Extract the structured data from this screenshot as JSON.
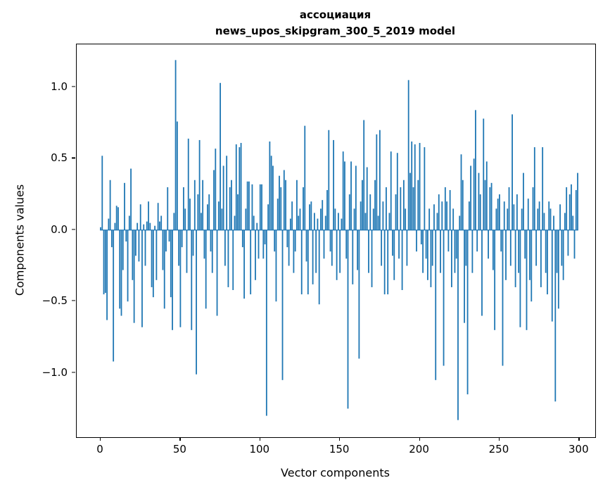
{
  "chart_data": {
    "type": "bar",
    "title": "ассоциация",
    "subtitle": "news_upos_skipgram_300_5_2019 model",
    "xlabel": "Vector components",
    "ylabel": "Components values",
    "bar_color": "#1f77b4",
    "xlim": [
      -15,
      310
    ],
    "ylim": [
      -1.45,
      1.3
    ],
    "xticks": [
      0,
      50,
      100,
      150,
      200,
      250,
      300
    ],
    "xtick_labels": [
      "0",
      "50",
      "100",
      "150",
      "200",
      "250",
      "300"
    ],
    "ytick_values": [
      1.0,
      0.5,
      0.0,
      -0.5,
      -1.0
    ],
    "ytick_labels": [
      "1.0",
      "0.5",
      "0.0",
      "−0.5",
      "−1.0"
    ],
    "x": {
      "start": 0,
      "step": 1,
      "count": 300
    },
    "values": [
      0.02,
      0.52,
      -0.45,
      -0.44,
      -0.63,
      0.08,
      0.35,
      -0.12,
      -0.92,
      0.05,
      0.17,
      0.16,
      -0.55,
      -0.6,
      -0.28,
      0.33,
      -0.08,
      -0.5,
      0.1,
      0.43,
      -0.35,
      -0.65,
      -0.18,
      0.05,
      -0.22,
      0.18,
      -0.68,
      0.04,
      -0.25,
      0.06,
      0.2,
      0.05,
      -0.4,
      -0.47,
      0.03,
      -0.35,
      0.19,
      0.06,
      0.1,
      -0.28,
      -0.55,
      -0.15,
      0.3,
      -0.08,
      -0.47,
      -0.7,
      0.12,
      1.19,
      0.76,
      -0.25,
      -0.68,
      -0.12,
      0.3,
      0.15,
      -0.3,
      0.64,
      0.22,
      -0.7,
      -0.18,
      0.35,
      -1.01,
      0.25,
      0.63,
      0.12,
      0.35,
      -0.2,
      -0.55,
      0.18,
      0.25,
      -0.15,
      -0.3,
      0.42,
      0.57,
      -0.6,
      0.2,
      1.03,
      0.15,
      0.45,
      -0.25,
      0.52,
      -0.4,
      0.3,
      0.35,
      -0.42,
      0.1,
      0.6,
      0.25,
      0.58,
      0.61,
      -0.12,
      -0.48,
      0.15,
      0.34,
      0.34,
      -0.45,
      0.32,
      0.1,
      -0.35,
      0.05,
      -0.2,
      0.32,
      0.32,
      -0.2,
      -0.1,
      -1.3,
      0.18,
      0.62,
      0.52,
      0.45,
      -0.15,
      -0.5,
      0.22,
      0.38,
      0.3,
      -1.05,
      0.42,
      0.35,
      -0.12,
      -0.25,
      0.08,
      0.2,
      -0.3,
      -0.15,
      0.35,
      0.1,
      0.15,
      -0.45,
      0.3,
      0.73,
      -0.22,
      -0.45,
      0.18,
      0.2,
      -0.38,
      0.12,
      -0.3,
      0.08,
      -0.52,
      0.15,
      0.21,
      -0.2,
      0.1,
      0.28,
      0.7,
      -0.15,
      -0.25,
      0.63,
      0.15,
      -0.35,
      0.12,
      -0.3,
      0.08,
      0.55,
      0.48,
      -0.2,
      -1.25,
      0.25,
      0.48,
      -0.38,
      0.15,
      0.45,
      -0.28,
      -0.9,
      0.2,
      0.35,
      0.77,
      0.12,
      0.44,
      -0.3,
      0.25,
      -0.4,
      0.15,
      0.35,
      0.67,
      0.1,
      0.7,
      -0.25,
      0.2,
      -0.45,
      0.3,
      -0.45,
      0.12,
      0.55,
      -0.18,
      -0.35,
      0.25,
      0.54,
      -0.2,
      0.3,
      -0.42,
      0.35,
      0.15,
      -0.25,
      1.05,
      0.4,
      0.62,
      0.3,
      0.6,
      -0.15,
      0.35,
      0.61,
      -0.1,
      -0.3,
      0.58,
      -0.2,
      -0.35,
      0.15,
      -0.4,
      -0.25,
      0.18,
      -1.05,
      0.12,
      0.25,
      -0.3,
      0.2,
      -0.95,
      0.3,
      0.2,
      -0.15,
      0.28,
      -0.4,
      0.15,
      -0.3,
      -0.2,
      -1.33,
      0.1,
      0.53,
      0.35,
      -0.65,
      -0.25,
      -1.15,
      0.2,
      0.45,
      -0.3,
      0.5,
      0.84,
      -0.15,
      0.4,
      0.25,
      -0.6,
      0.78,
      0.35,
      0.48,
      -0.2,
      0.3,
      0.33,
      -0.28,
      -0.7,
      0.15,
      0.22,
      0.25,
      -0.15,
      -0.95,
      0.2,
      -0.35,
      0.15,
      0.3,
      -0.25,
      0.81,
      0.18,
      -0.4,
      0.25,
      -0.3,
      -0.68,
      0.15,
      0.4,
      -0.2,
      -0.7,
      0.22,
      -0.35,
      -0.5,
      0.3,
      0.58,
      -0.25,
      0.15,
      0.2,
      -0.4,
      0.58,
      0.12,
      -0.3,
      -0.45,
      0.2,
      0.15,
      -0.64,
      0.1,
      -1.2,
      -0.3,
      -0.55,
      0.18,
      -0.25,
      -0.35,
      0.12,
      0.3,
      -0.18,
      0.25,
      0.32,
      0.1,
      -0.2,
      0.28,
      0.4
    ]
  }
}
